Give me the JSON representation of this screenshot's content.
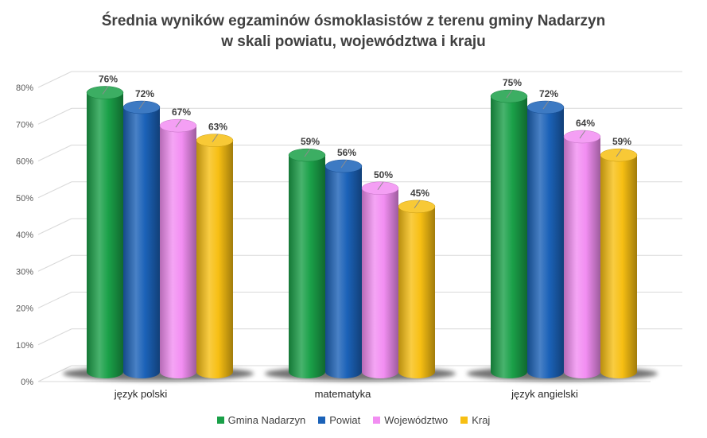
{
  "chart_data": {
    "type": "bar",
    "title": "Średnia wyników egzaminów ósmoklasistów z terenu gminy Nadarzyn",
    "subtitle": "w skali powiatu, województwa i kraju",
    "categories": [
      "język polski",
      "matematyka",
      "język angielski"
    ],
    "series": [
      {
        "name": "Gmina Nadarzyn",
        "color": "#1aa048",
        "values": [
          76,
          59,
          75
        ]
      },
      {
        "name": "Powiat",
        "color": "#1b62b8",
        "values": [
          72,
          56,
          72
        ]
      },
      {
        "name": "Województwo",
        "color": "#f28ef2",
        "values": [
          67,
          50,
          64
        ]
      },
      {
        "name": "Kraj",
        "color": "#f7bf13",
        "values": [
          63,
          45,
          59
        ]
      }
    ],
    "y_ticks": [
      "0%",
      "10%",
      "20%",
      "30%",
      "40%",
      "50%",
      "60%",
      "70%",
      "80%"
    ],
    "ylim": [
      0,
      80
    ],
    "value_labels": [
      [
        "76%",
        "59%",
        "75%"
      ],
      [
        "72%",
        "56%",
        "72%"
      ],
      [
        "67%",
        "50%",
        "64%"
      ],
      [
        "63%",
        "45%",
        "59%"
      ]
    ],
    "grid": true,
    "legend": "bottom"
  }
}
